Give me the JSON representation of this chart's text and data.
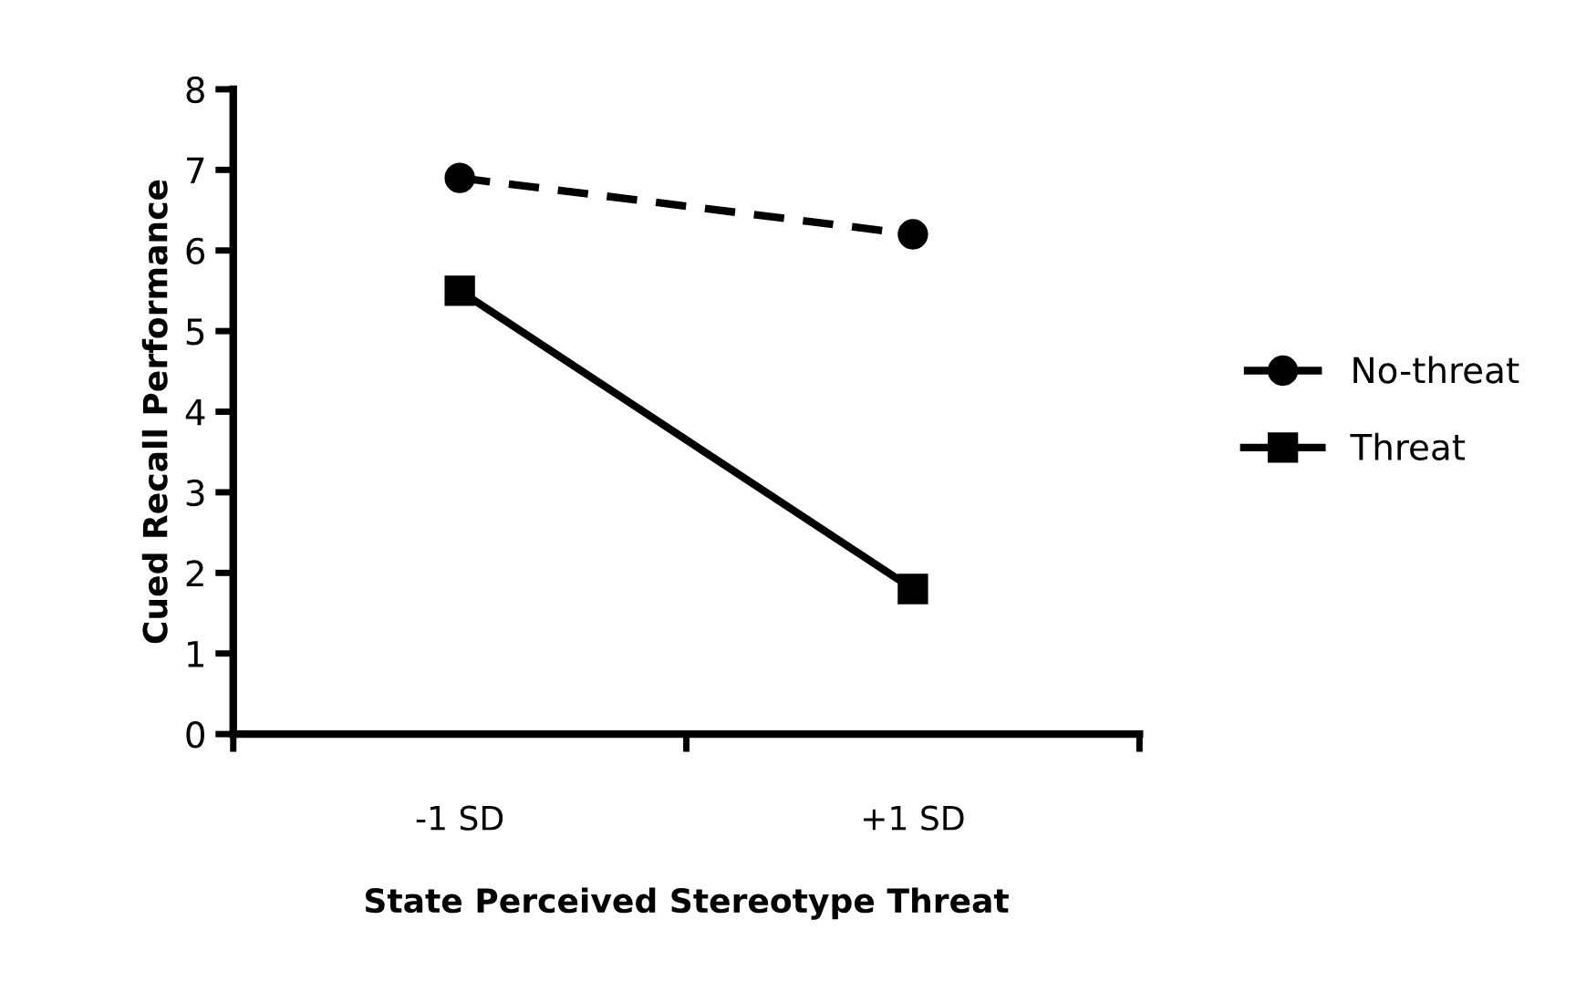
{
  "chart_data": {
    "type": "line",
    "xlabel": "State Perceived Stereotype Threat",
    "ylabel": "Cued Recall Performance",
    "categories": [
      "-1 SD",
      "+1 SD"
    ],
    "series": [
      {
        "name": "No-threat",
        "color": "#000000",
        "values": [
          6.9,
          6.2
        ],
        "marker": "circle",
        "line_style": "dashed"
      },
      {
        "name": "Threat",
        "color": "#000000",
        "values": [
          5.5,
          1.8
        ],
        "marker": "square",
        "line_style": "solid"
      }
    ],
    "ylim": [
      0,
      8
    ],
    "yticks": [
      0,
      1,
      2,
      3,
      4,
      5,
      6,
      7,
      8
    ],
    "grid": false,
    "legend": "right"
  }
}
